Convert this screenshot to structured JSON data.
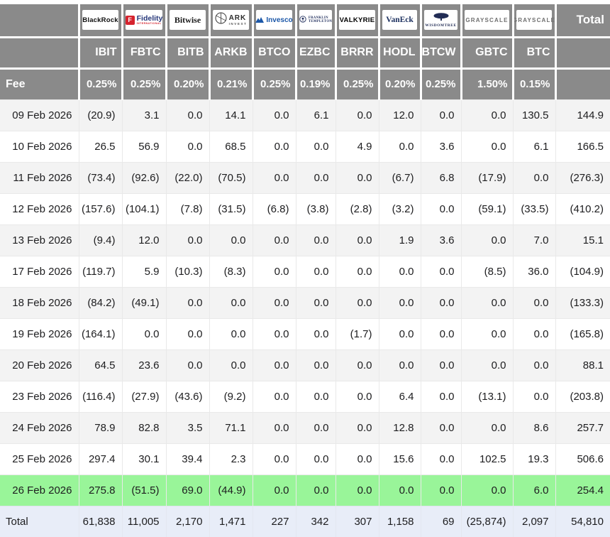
{
  "header": {
    "total_label": "Total",
    "fee_label": "Fee"
  },
  "columns": [
    {
      "ticker": "IBIT",
      "fee": "0.25%",
      "issuer": "BlackRock",
      "logo": "blackrock"
    },
    {
      "ticker": "FBTC",
      "fee": "0.25%",
      "issuer": "Fidelity",
      "logo": "fidelity",
      "logo_sub": "INTERNATIONAL",
      "logo_letter": "F"
    },
    {
      "ticker": "BITB",
      "fee": "0.20%",
      "issuer": "Bitwise",
      "logo": "bitwise"
    },
    {
      "ticker": "ARKB",
      "fee": "0.21%",
      "issuer": "ARK Invest",
      "logo": "ark",
      "logo_lines": [
        "ARK",
        "INVEST"
      ]
    },
    {
      "ticker": "BTCO",
      "fee": "0.25%",
      "issuer": "Invesco",
      "logo": "invesco"
    },
    {
      "ticker": "EZBC",
      "fee": "0.19%",
      "issuer": "Franklin Templeton",
      "logo": "franklin",
      "logo_lines": [
        "FRANKLIN",
        "TEMPLETON"
      ]
    },
    {
      "ticker": "BRRR",
      "fee": "0.25%",
      "issuer": "VALKYRIE",
      "logo": "valkyrie"
    },
    {
      "ticker": "HODL",
      "fee": "0.20%",
      "issuer": "VanEck",
      "logo": "vaneck"
    },
    {
      "ticker": "BTCW",
      "fee": "0.25%",
      "issuer": "WISDOMTREE",
      "logo": "wisdomtree"
    },
    {
      "ticker": "GBTC",
      "fee": "1.50%",
      "issuer": "GRAYSCALE",
      "logo": "grayscale"
    },
    {
      "ticker": "BTC",
      "fee": "0.15%",
      "issuer": "GRAYSCALE",
      "logo": "grayscale"
    }
  ],
  "rows": [
    {
      "date": "09 Feb 2026",
      "values": [
        "(20.9)",
        "3.1",
        "0.0",
        "14.1",
        "0.0",
        "6.1",
        "0.0",
        "12.0",
        "0.0",
        "0.0",
        "130.5"
      ],
      "total": "144.9"
    },
    {
      "date": "10 Feb 2026",
      "values": [
        "26.5",
        "56.9",
        "0.0",
        "68.5",
        "0.0",
        "0.0",
        "4.9",
        "0.0",
        "3.6",
        "0.0",
        "6.1"
      ],
      "total": "166.5"
    },
    {
      "date": "11 Feb 2026",
      "values": [
        "(73.4)",
        "(92.6)",
        "(22.0)",
        "(70.5)",
        "0.0",
        "0.0",
        "0.0",
        "(6.7)",
        "6.8",
        "(17.9)",
        "0.0"
      ],
      "total": "(276.3)"
    },
    {
      "date": "12 Feb 2026",
      "values": [
        "(157.6)",
        "(104.1)",
        "(7.8)",
        "(31.5)",
        "(6.8)",
        "(3.8)",
        "(2.8)",
        "(3.2)",
        "0.0",
        "(59.1)",
        "(33.5)"
      ],
      "total": "(410.2)"
    },
    {
      "date": "13 Feb 2026",
      "values": [
        "(9.4)",
        "12.0",
        "0.0",
        "0.0",
        "0.0",
        "0.0",
        "0.0",
        "1.9",
        "3.6",
        "0.0",
        "7.0"
      ],
      "total": "15.1"
    },
    {
      "date": "17 Feb 2026",
      "values": [
        "(119.7)",
        "5.9",
        "(10.3)",
        "(8.3)",
        "0.0",
        "0.0",
        "0.0",
        "0.0",
        "0.0",
        "(8.5)",
        "36.0"
      ],
      "total": "(104.9)"
    },
    {
      "date": "18 Feb 2026",
      "values": [
        "(84.2)",
        "(49.1)",
        "0.0",
        "0.0",
        "0.0",
        "0.0",
        "0.0",
        "0.0",
        "0.0",
        "0.0",
        "0.0"
      ],
      "total": "(133.3)"
    },
    {
      "date": "19 Feb 2026",
      "values": [
        "(164.1)",
        "0.0",
        "0.0",
        "0.0",
        "0.0",
        "0.0",
        "(1.7)",
        "0.0",
        "0.0",
        "0.0",
        "0.0"
      ],
      "total": "(165.8)"
    },
    {
      "date": "20 Feb 2026",
      "values": [
        "64.5",
        "23.6",
        "0.0",
        "0.0",
        "0.0",
        "0.0",
        "0.0",
        "0.0",
        "0.0",
        "0.0",
        "0.0"
      ],
      "total": "88.1"
    },
    {
      "date": "23 Feb 2026",
      "values": [
        "(116.4)",
        "(27.9)",
        "(43.6)",
        "(9.2)",
        "0.0",
        "0.0",
        "0.0",
        "6.4",
        "0.0",
        "(13.1)",
        "0.0"
      ],
      "total": "(203.8)"
    },
    {
      "date": "24 Feb 2026",
      "values": [
        "78.9",
        "82.8",
        "3.5",
        "71.1",
        "0.0",
        "0.0",
        "0.0",
        "12.8",
        "0.0",
        "0.0",
        "8.6"
      ],
      "total": "257.7"
    },
    {
      "date": "25 Feb 2026",
      "values": [
        "297.4",
        "30.1",
        "39.4",
        "2.3",
        "0.0",
        "0.0",
        "0.0",
        "15.6",
        "0.0",
        "102.5",
        "19.3"
      ],
      "total": "506.6"
    },
    {
      "date": "26 Feb 2026",
      "values": [
        "275.8",
        "(51.5)",
        "69.0",
        "(44.9)",
        "0.0",
        "0.0",
        "0.0",
        "0.0",
        "0.0",
        "0.0",
        "6.0"
      ],
      "total": "254.4",
      "highlight": true
    }
  ],
  "total_row": {
    "label": "Total",
    "values": [
      "61,838",
      "11,005",
      "2,170",
      "1,471",
      "227",
      "342",
      "307",
      "1,158",
      "69",
      "(25,874)",
      "2,097"
    ],
    "total": "54,810"
  },
  "colors": {
    "header_bg": "#8a8a8a",
    "header_text": "#ffffff",
    "negative": "#f01515",
    "text": "#1d1d1f",
    "stripe": "#f3f3f3",
    "highlight": "#99f599",
    "total_row_bg": "#e8edf8"
  }
}
